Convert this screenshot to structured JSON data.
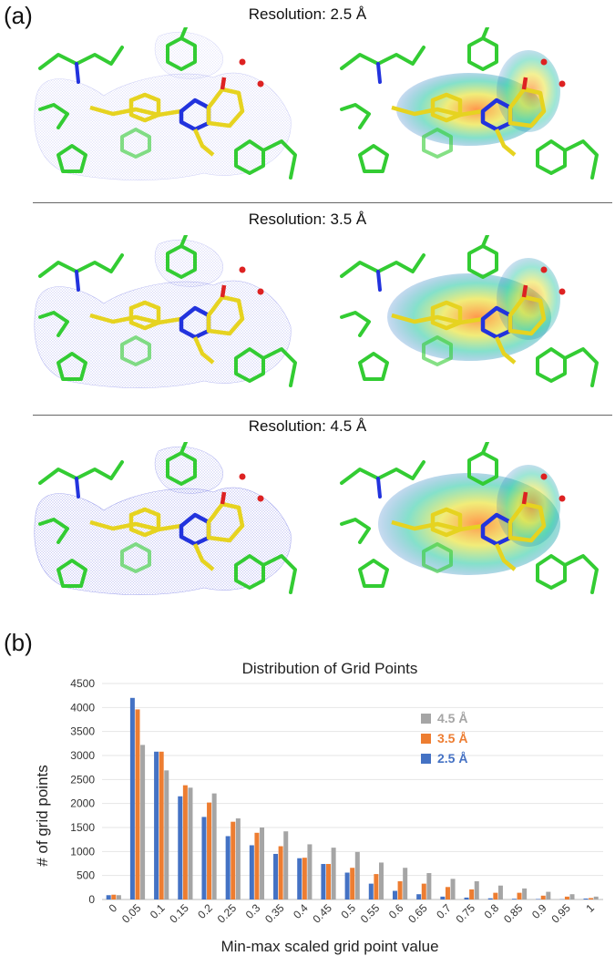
{
  "panel_a": {
    "label": "(a)",
    "rows": [
      {
        "title": "Resolution: 2.5 Å"
      },
      {
        "title": "Resolution: 3.5 Å"
      },
      {
        "title": "Resolution: 4.5 Å"
      }
    ]
  },
  "panel_b": {
    "label": "(b)"
  },
  "colors": {
    "res_2_5": "#4472C4",
    "res_3_5": "#ED7D31",
    "res_4_5": "#A5A5A5",
    "mesh": "#7b7fe6",
    "carbon": "#33cc33",
    "ligand": "#e6d320",
    "nitrogen": "#2233dd",
    "oxygen": "#dd2222"
  },
  "chart_data": {
    "type": "bar",
    "title": "Distribution of Grid Points",
    "xlabel": "Min-max scaled grid point value",
    "ylabel": "# of grid points",
    "ylim": [
      0,
      4500
    ],
    "yticks": [
      "0",
      "500",
      "1000",
      "1500",
      "2000",
      "2500",
      "3000",
      "3500",
      "4000",
      "4500"
    ],
    "categories": [
      "0",
      "0.05",
      "0.1",
      "0.15",
      "0.2",
      "0.25",
      "0.3",
      "0.35",
      "0.4",
      "0.45",
      "0.5",
      "0.55",
      "0.6",
      "0.65",
      "0.7",
      "0.75",
      "0.8",
      "0.85",
      "0.9",
      "0.95",
      "1"
    ],
    "legend_position": "top-right",
    "series": [
      {
        "name": "2.5 Å",
        "color": "#4472C4",
        "values": [
          90,
          4200,
          3080,
          2150,
          1720,
          1320,
          1130,
          950,
          860,
          740,
          560,
          330,
          180,
          110,
          60,
          40,
          25,
          15,
          10,
          5,
          20
        ]
      },
      {
        "name": "3.5 Å",
        "color": "#ED7D31",
        "values": [
          100,
          3960,
          3080,
          2380,
          2020,
          1620,
          1390,
          1110,
          870,
          740,
          660,
          530,
          380,
          330,
          260,
          210,
          140,
          140,
          80,
          60,
          30
        ]
      },
      {
        "name": "4.5 Å",
        "color": "#A5A5A5",
        "values": [
          90,
          3220,
          2690,
          2330,
          2210,
          1690,
          1500,
          1420,
          1150,
          1080,
          990,
          770,
          660,
          550,
          430,
          380,
          290,
          230,
          160,
          110,
          60
        ]
      }
    ],
    "legend_order": [
      "4.5 Å",
      "3.5 Å",
      "2.5 Å"
    ]
  }
}
